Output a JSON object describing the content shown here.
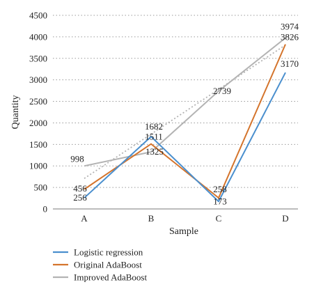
{
  "chart_data": {
    "type": "line",
    "title": "",
    "xlabel": "Sample",
    "ylabel": "Quantity",
    "categories": [
      "A",
      "B",
      "C",
      "D"
    ],
    "ylim": [
      0,
      4500
    ],
    "yticks": [
      0,
      500,
      1000,
      1500,
      2000,
      2500,
      3000,
      3500,
      4000,
      4500
    ],
    "grid": "horizontal dotted",
    "legend_position": "bottom-left",
    "series": [
      {
        "name": "Logistic regression",
        "color": "#4a8fce",
        "values": [
          256,
          1682,
          173,
          3170
        ],
        "labels": [
          "256",
          "1682",
          "173",
          "3170"
        ]
      },
      {
        "name": "Original AdaBoost",
        "color": "#d4742c",
        "values": [
          456,
          1511,
          258,
          3826
        ],
        "labels": [
          "456",
          "1511",
          "258",
          "3826"
        ]
      },
      {
        "name": "Improved AdaBoost",
        "color": "#b3b3b3",
        "values": [
          998,
          1325,
          2739,
          3974
        ],
        "labels": [
          "998",
          "1325",
          "2739",
          "3974"
        ]
      }
    ],
    "trendline": {
      "series": "Improved AdaBoost",
      "kind": "linear",
      "style": "dotted"
    }
  }
}
